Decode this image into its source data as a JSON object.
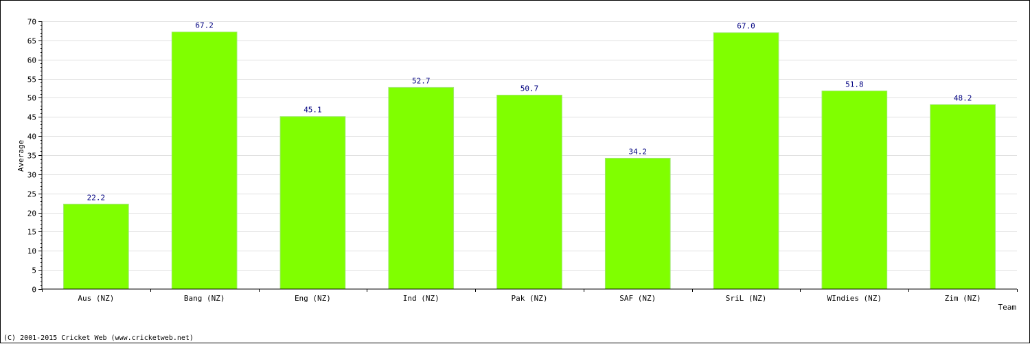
{
  "chart_data": {
    "type": "bar",
    "categories": [
      "Aus (NZ)",
      "Bang (NZ)",
      "Eng (NZ)",
      "Ind (NZ)",
      "Pak (NZ)",
      "SAF (NZ)",
      "SriL (NZ)",
      "WIndies (NZ)",
      "Zim (NZ)"
    ],
    "values": [
      22.2,
      67.2,
      45.1,
      52.7,
      50.7,
      34.2,
      67.0,
      51.8,
      48.2
    ],
    "value_labels": [
      "22.2",
      "67.2",
      "45.1",
      "52.7",
      "50.7",
      "34.2",
      "67.0",
      "51.8",
      "48.2"
    ],
    "xlabel": "Team",
    "ylabel": "Average",
    "ylim": [
      0,
      70
    ],
    "yticks": [
      0,
      5,
      10,
      15,
      20,
      25,
      30,
      35,
      40,
      45,
      50,
      55,
      60,
      65,
      70
    ],
    "grid": true,
    "bar_color": "#80ff00",
    "value_label_color": "#000080"
  },
  "footer": {
    "copyright": "(C) 2001-2015 Cricket Web (www.cricketweb.net)"
  }
}
